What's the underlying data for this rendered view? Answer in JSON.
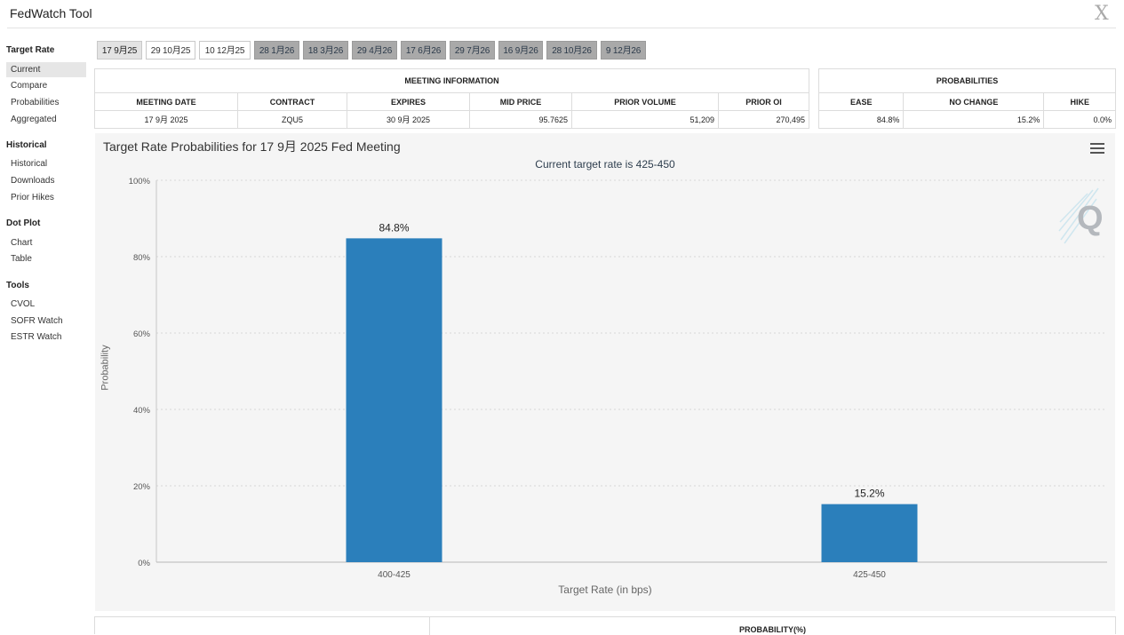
{
  "app": {
    "title": "FedWatch Tool",
    "close_glyph": "X"
  },
  "sidebar": {
    "sections": [
      {
        "heading": "Target Rate",
        "items": [
          "Current",
          "Compare",
          "Probabilities",
          "Aggregated"
        ]
      },
      {
        "heading": "Historical",
        "items": [
          "Historical",
          "Downloads",
          "Prior Hikes"
        ]
      },
      {
        "heading": "Dot Plot",
        "items": [
          "Chart",
          "Table"
        ]
      },
      {
        "heading": "Tools",
        "items": [
          "CVOL",
          "SOFR Watch",
          "ESTR Watch"
        ]
      }
    ],
    "active_item": "Current"
  },
  "meeting_tabs": [
    {
      "label": "17 9月25",
      "state": "selected"
    },
    {
      "label": "29 10月25",
      "state": "open"
    },
    {
      "label": "10 12月25",
      "state": "open"
    },
    {
      "label": "28 1月26",
      "state": "disabled"
    },
    {
      "label": "18 3月26",
      "state": "disabled"
    },
    {
      "label": "29 4月26",
      "state": "disabled"
    },
    {
      "label": "17 6月26",
      "state": "disabled"
    },
    {
      "label": "29 7月26",
      "state": "disabled"
    },
    {
      "label": "16 9月26",
      "state": "disabled"
    },
    {
      "label": "28 10月26",
      "state": "disabled"
    },
    {
      "label": "9 12月26",
      "state": "disabled"
    }
  ],
  "meeting_info": {
    "group_label": "MEETING INFORMATION",
    "headers": [
      "MEETING DATE",
      "CONTRACT",
      "EXPIRES",
      "MID PRICE",
      "PRIOR VOLUME",
      "PRIOR OI"
    ],
    "row": [
      "17 9月 2025",
      "ZQU5",
      "30 9月 2025",
      "95.7625",
      "51,209",
      "270,495"
    ]
  },
  "probabilities": {
    "group_label": "PROBABILITIES",
    "headers": [
      "EASE",
      "NO CHANGE",
      "HIKE"
    ],
    "row": [
      "84.8%",
      "15.2%",
      "0.0%"
    ]
  },
  "chart": {
    "title": "Target Rate Probabilities for 17 9月 2025 Fed Meeting",
    "subtitle": "Current target rate is 425-450",
    "bar_color": "#2b7fbb",
    "watermark_letter": "Q"
  },
  "chart_data": {
    "type": "bar",
    "categories": [
      "400-425",
      "425-450"
    ],
    "values": [
      84.8,
      15.2
    ],
    "data_labels": [
      "84.8%",
      "15.2%"
    ],
    "xlabel": "Target Rate (in bps)",
    "ylabel": "Probability",
    "ylim": [
      0,
      100
    ],
    "yticks": [
      "0%",
      "20%",
      "40%",
      "60%",
      "80%",
      "100%"
    ],
    "grid": true
  },
  "bottom_table": {
    "header": "PROBABILITY(%)"
  }
}
